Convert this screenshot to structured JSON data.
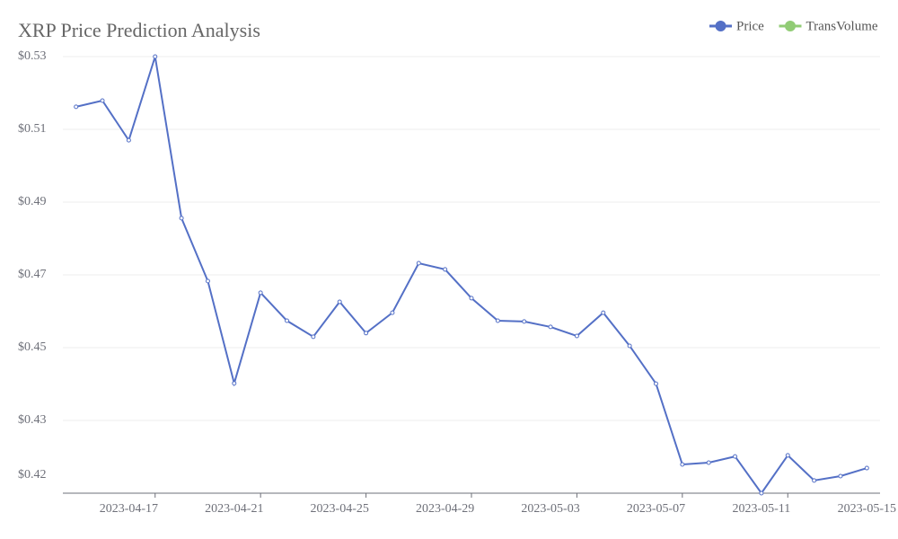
{
  "chart_data": {
    "type": "line",
    "title": "XRP Price Prediction Analysis",
    "categories": [
      null,
      null,
      "2023-04-17",
      null,
      null,
      null,
      "2023-04-21",
      null,
      null,
      null,
      "2023-04-25",
      null,
      null,
      null,
      "2023-04-29",
      null,
      null,
      null,
      "2023-05-03",
      null,
      null,
      null,
      "2023-05-07",
      null,
      null,
      null,
      "2023-05-11",
      null,
      null,
      null,
      "2023-05-15"
    ],
    "series": [
      {
        "name": "Price",
        "color": "#5470c6",
        "values": [
          0.5162,
          0.5179,
          0.507,
          0.53,
          0.4856,
          0.4683,
          0.4402,
          0.4651,
          0.4574,
          0.453,
          0.4626,
          0.454,
          0.4596,
          0.4732,
          0.4715,
          0.4636,
          0.4574,
          0.4572,
          0.4557,
          0.4532,
          0.4596,
          0.4505,
          0.4401,
          0.4179,
          0.4184,
          0.4201,
          0.41,
          0.4204,
          0.4135,
          0.4147,
          0.4169
        ]
      },
      {
        "name": "TransVolume",
        "color": "#91cc75",
        "values": [
          null,
          null,
          null,
          null,
          null,
          null,
          null,
          null,
          null,
          null,
          null,
          null,
          null,
          null,
          null,
          null,
          null,
          null,
          null,
          null,
          null,
          null,
          null,
          null,
          null,
          null,
          null,
          null,
          null,
          null,
          null
        ]
      }
    ],
    "ylim": [
      0.41,
      0.53
    ],
    "yticks": [
      {
        "value": 0.415,
        "label": "$0.42"
      },
      {
        "value": 0.43,
        "label": "$0.43"
      },
      {
        "value": 0.45,
        "label": "$0.45"
      },
      {
        "value": 0.47,
        "label": "$0.47"
      },
      {
        "value": 0.49,
        "label": "$0.49"
      },
      {
        "value": 0.51,
        "label": "$0.51"
      },
      {
        "value": 0.53,
        "label": "$0.53"
      }
    ],
    "grid": true,
    "legend": "top-right"
  }
}
